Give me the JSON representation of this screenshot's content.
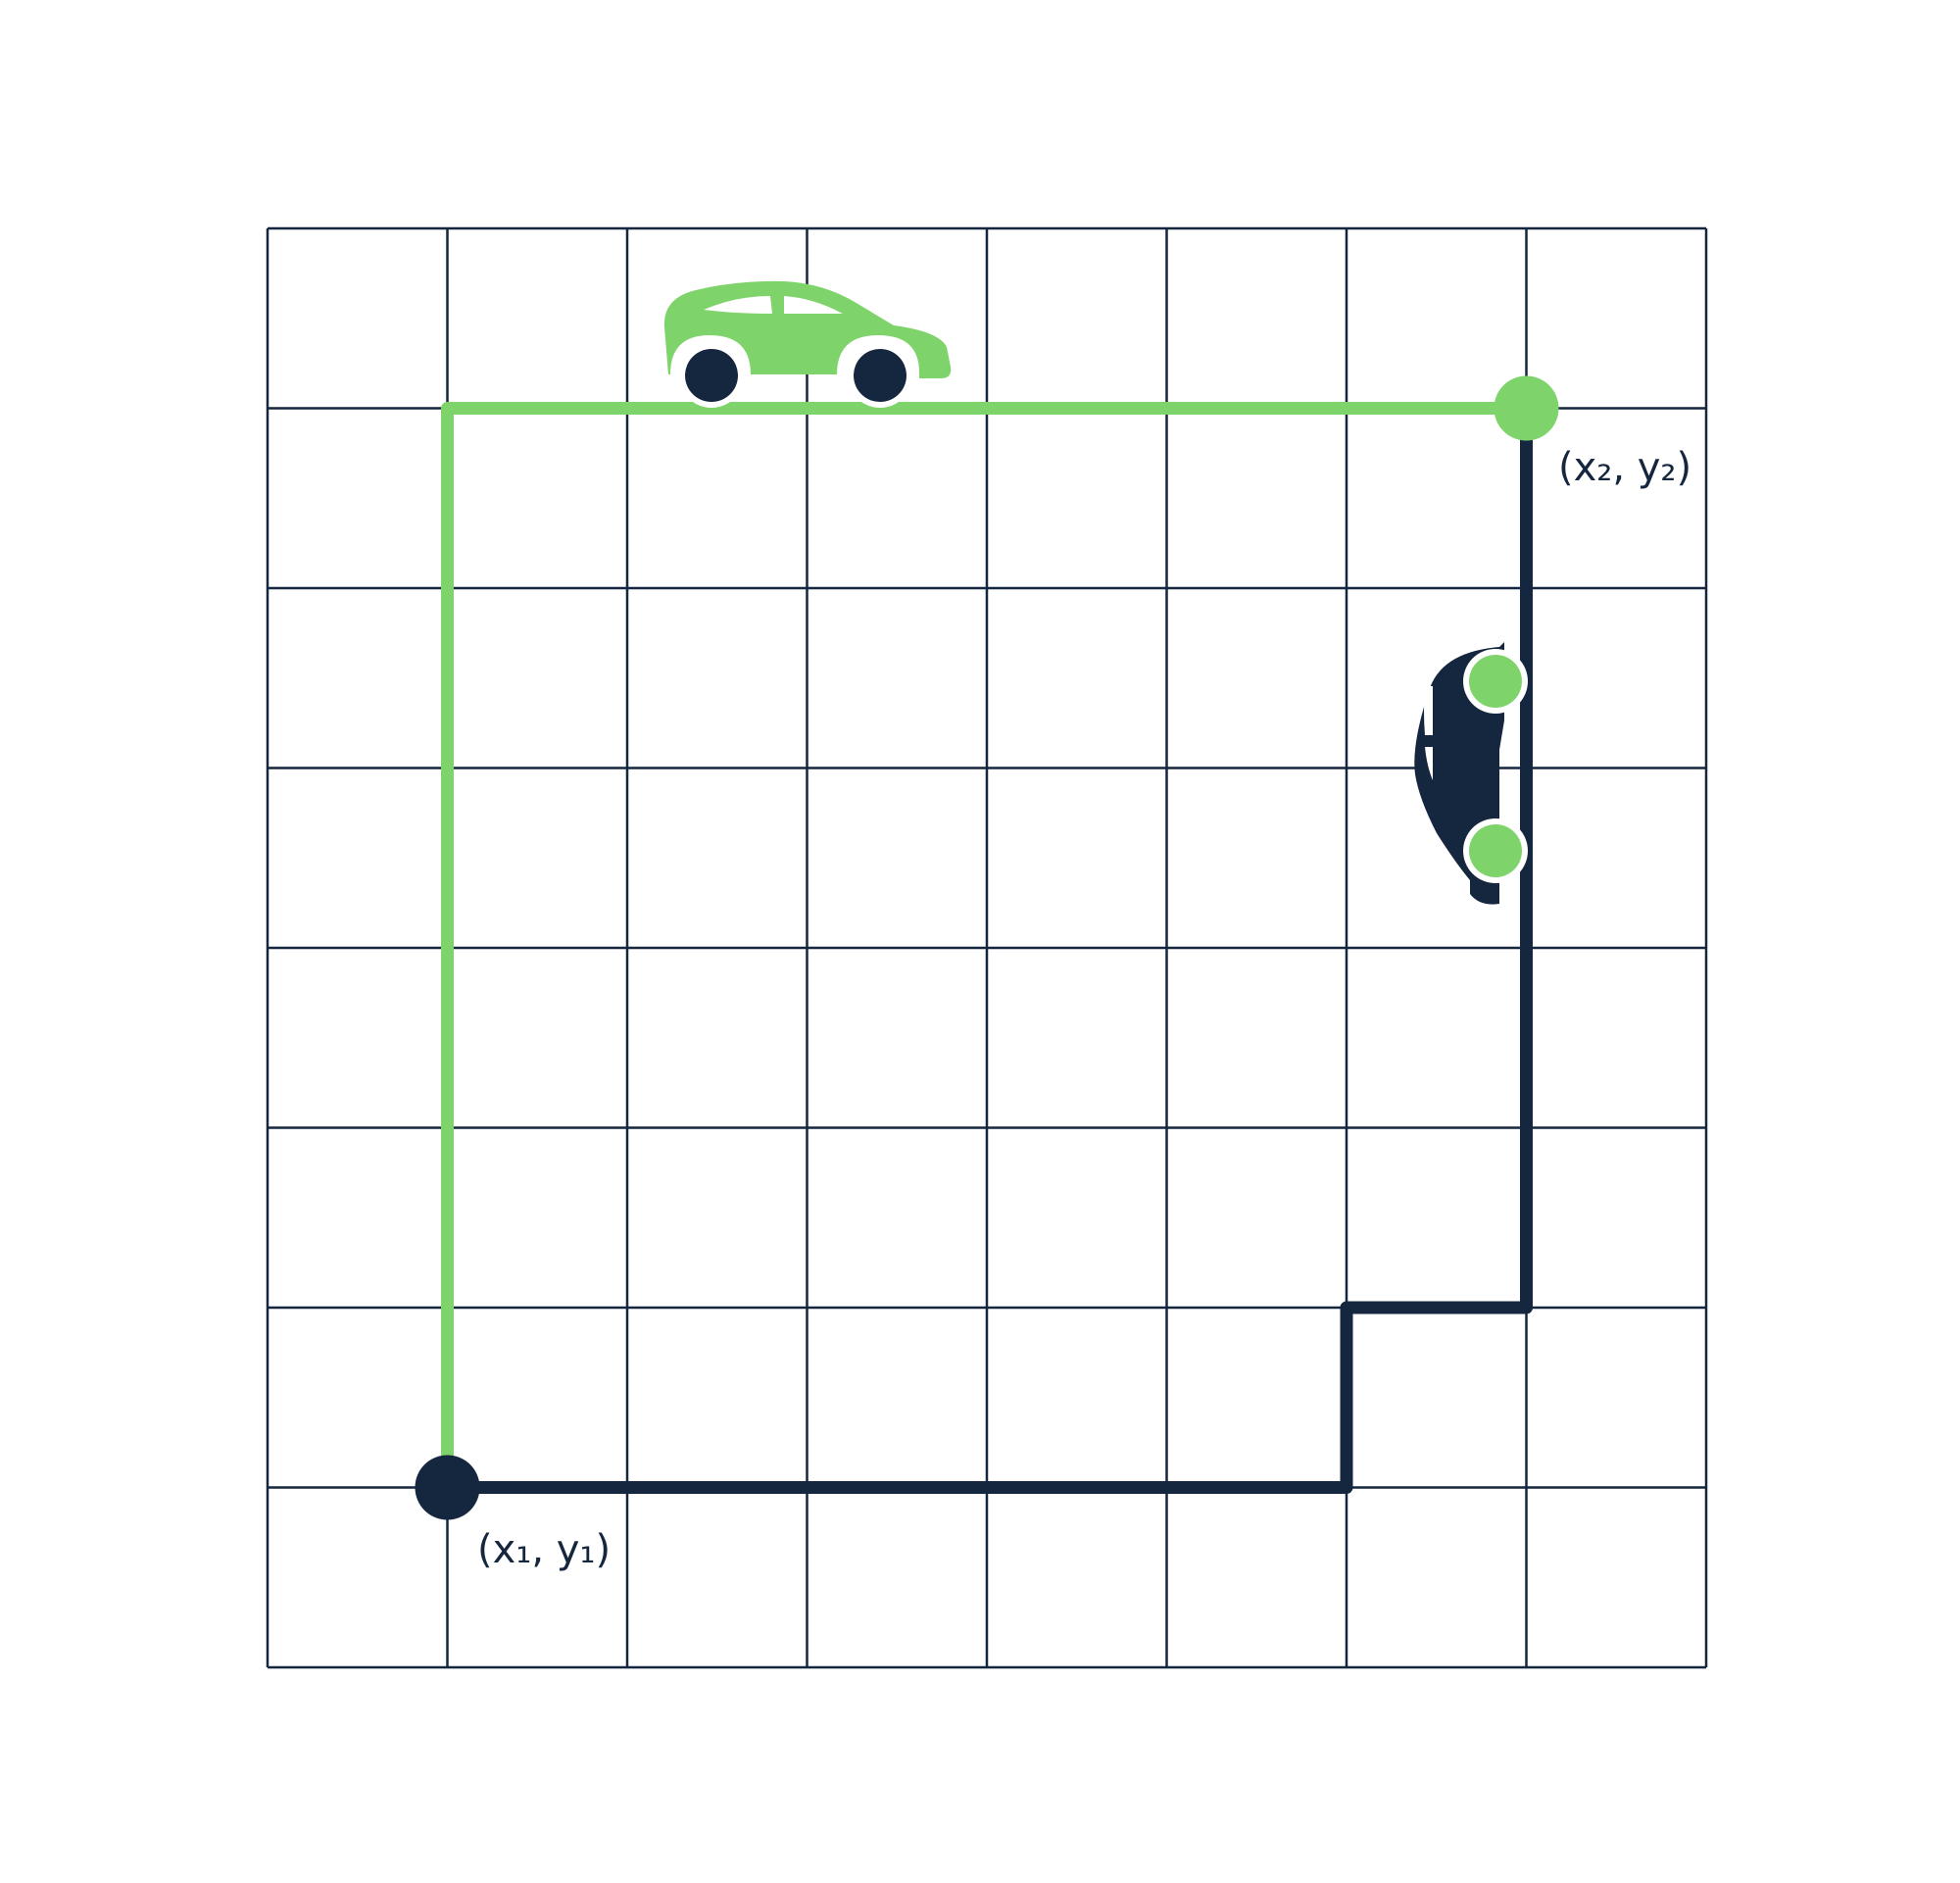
{
  "diagram": {
    "grid": {
      "columns": 8,
      "rows": 8
    },
    "colors": {
      "grid": "#15263f",
      "green_path": "#7ed46a",
      "navy_path": "#15263f",
      "background": "#ffffff"
    },
    "points": {
      "start": {
        "label": "(x₁, y₁)",
        "grid_col": 1,
        "grid_row": 7,
        "color": "#15263f"
      },
      "end": {
        "label": "(x₂, y₂)",
        "grid_col": 7,
        "grid_row": 1,
        "color": "#7ed46a"
      }
    },
    "paths": [
      {
        "name": "green-route",
        "color": "#7ed46a",
        "vertices": [
          [
            1,
            7
          ],
          [
            1,
            1
          ],
          [
            7,
            1
          ]
        ]
      },
      {
        "name": "navy-route",
        "color": "#15263f",
        "vertices": [
          [
            1,
            7
          ],
          [
            6,
            7
          ],
          [
            6,
            6
          ],
          [
            7,
            6
          ],
          [
            7,
            1
          ]
        ]
      }
    ],
    "vehicles": [
      {
        "name": "green-car",
        "icon": "car-side-icon",
        "color": "#7ed46a",
        "wheel_color": "#15263f",
        "orientation": "horizontal"
      },
      {
        "name": "navy-car",
        "icon": "car-side-icon",
        "color": "#15263f",
        "wheel_color": "#7ed46a",
        "orientation": "vertical"
      }
    ]
  }
}
